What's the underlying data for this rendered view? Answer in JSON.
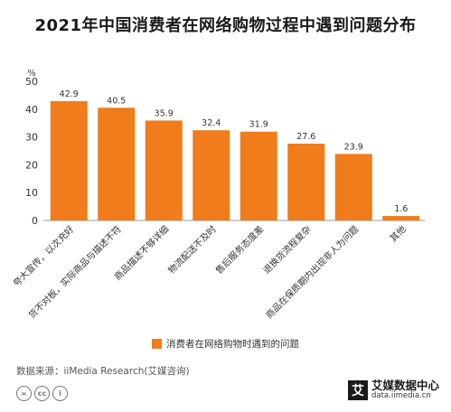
{
  "chart_data": {
    "type": "bar",
    "title": "2021年中国消费者在网络购物过程中遇到问题分布",
    "y_unit": "%",
    "categories": [
      "夸大宣传，以次充好",
      "货不对板，实际商品与描述不符",
      "商品描述不够详细",
      "物流配送不及时",
      "售后服务态度差",
      "退换货流程复杂",
      "商品在保质期内出现非人为问题",
      "其他"
    ],
    "series": [
      {
        "name": "消费者在网络购物时遇到的问题",
        "values": [
          42.9,
          40.5,
          35.9,
          32.4,
          31.9,
          27.6,
          23.9,
          1.6
        ]
      }
    ],
    "yticks": [
      0,
      10,
      20,
      30,
      40,
      50
    ],
    "ylim": [
      0,
      50
    ],
    "grid": false,
    "legend_position": "bottom",
    "colors": {
      "bar": "#f07c1b",
      "axis": "#999999",
      "text": "#333333"
    }
  },
  "footer": {
    "source": "数据来源：iiMedia Research(艾媒咨询)",
    "license_icons": [
      "=",
      "cc",
      "i"
    ],
    "brand_logo": "艾",
    "brand_name": "艾媒数据中心",
    "brand_url": "data.iimedia.cn"
  }
}
